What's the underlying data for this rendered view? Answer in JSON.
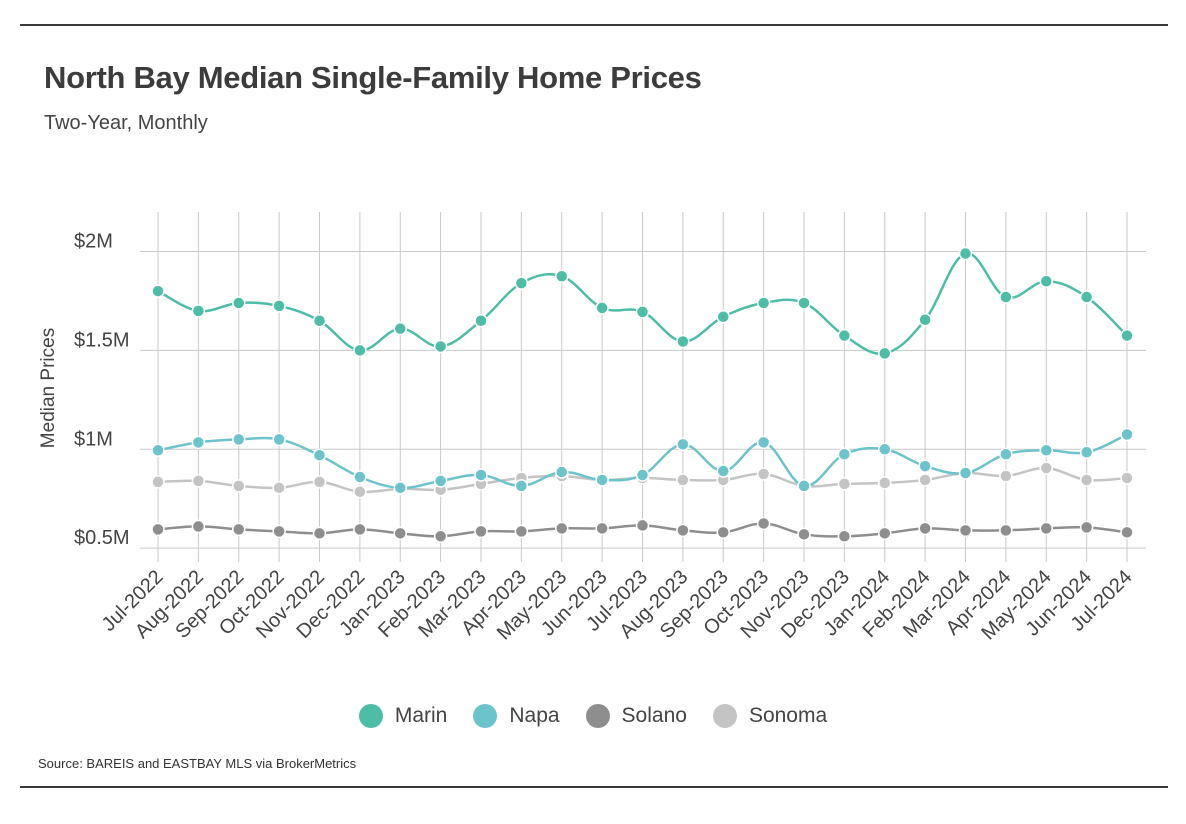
{
  "title": "North Bay Median Single-Family Home Prices",
  "subtitle": "Two-Year, Monthly",
  "source": "Source:  BAREIS and EASTBAY MLS via BrokerMetrics",
  "chart_data": {
    "type": "line",
    "xlabel": "",
    "ylabel": "Median Prices",
    "ylim": [
      430000,
      2200000
    ],
    "yticks": [
      {
        "value": 500000,
        "label": "$0.5M"
      },
      {
        "value": 1000000,
        "label": "$1M"
      },
      {
        "value": 1500000,
        "label": "$1.5M"
      },
      {
        "value": 2000000,
        "label": "$2M"
      }
    ],
    "grid": true,
    "legend_position": "bottom",
    "categories": [
      "Jul-2022",
      "Aug-2022",
      "Sep-2022",
      "Oct-2022",
      "Nov-2022",
      "Dec-2022",
      "Jan-2023",
      "Feb-2023",
      "Mar-2023",
      "Apr-2023",
      "May-2023",
      "Jun-2023",
      "Jul-2023",
      "Aug-2023",
      "Sep-2023",
      "Oct-2023",
      "Nov-2023",
      "Dec-2023",
      "Jan-2024",
      "Feb-2024",
      "Mar-2024",
      "Apr-2024",
      "May-2024",
      "Jun-2024",
      "Jul-2024"
    ],
    "series": [
      {
        "name": "Marin",
        "color": "#4dbda6",
        "values": [
          1800000,
          1700000,
          1740000,
          1725000,
          1650000,
          1500000,
          1610000,
          1520000,
          1650000,
          1840000,
          1875000,
          1715000,
          1695000,
          1545000,
          1670000,
          1740000,
          1740000,
          1575000,
          1485000,
          1655000,
          1990000,
          1770000,
          1850000,
          1770000,
          1575000
        ]
      },
      {
        "name": "Napa",
        "color": "#6cc3cb",
        "values": [
          995000,
          1035000,
          1050000,
          1050000,
          970000,
          860000,
          805000,
          840000,
          870000,
          815000,
          885000,
          845000,
          870000,
          1025000,
          890000,
          1035000,
          815000,
          975000,
          1000000,
          915000,
          880000,
          975000,
          995000,
          985000,
          1075000
        ]
      },
      {
        "name": "Solano",
        "color": "#8e8e8e",
        "values": [
          595000,
          610000,
          595000,
          585000,
          575000,
          595000,
          575000,
          560000,
          585000,
          585000,
          600000,
          600000,
          615000,
          590000,
          580000,
          625000,
          570000,
          560000,
          575000,
          600000,
          590000,
          590000,
          600000,
          605000,
          580000
        ]
      },
      {
        "name": "Sonoma",
        "color": "#c4c4c4",
        "values": [
          835000,
          840000,
          815000,
          805000,
          835000,
          785000,
          800000,
          795000,
          825000,
          855000,
          865000,
          845000,
          855000,
          845000,
          845000,
          875000,
          815000,
          825000,
          830000,
          845000,
          880000,
          865000,
          905000,
          845000,
          855000
        ]
      }
    ]
  }
}
